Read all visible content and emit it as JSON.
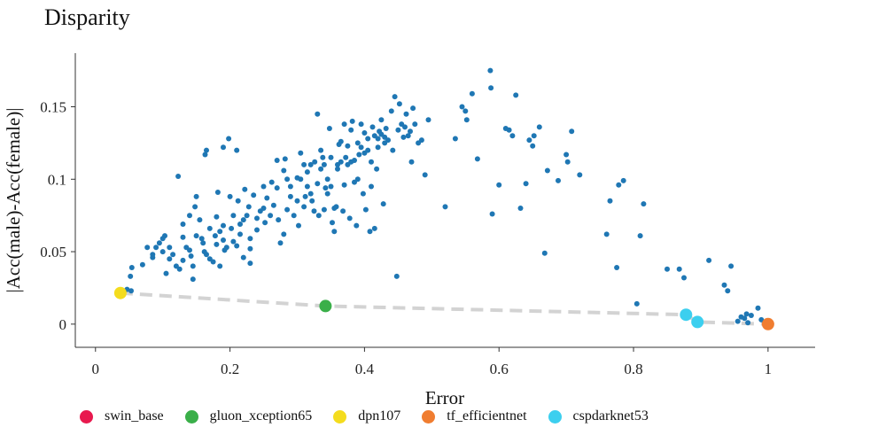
{
  "chart_data": {
    "type": "scatter",
    "title": "Disparity",
    "xlabel": "Error",
    "ylabel": "|Acc(male)-Acc(female)|",
    "xlim": [
      -0.03,
      1.07
    ],
    "ylim": [
      -0.016,
      0.187
    ],
    "x_ticks": [
      0,
      0.2,
      0.4,
      0.6,
      0.8,
      1
    ],
    "x_tick_labels": [
      "0",
      "0.2",
      "0.4",
      "0.6",
      "0.8",
      "1"
    ],
    "y_ticks": [
      0,
      0.05,
      0.1,
      0.15
    ],
    "y_tick_labels": [
      "0",
      "0.05",
      "0.1",
      "0.15"
    ],
    "grid": false,
    "legend_position": "bottom",
    "background_color": "#1f77b4",
    "highlight": [
      {
        "name": "swin_base",
        "color": "#e8194e",
        "x": null,
        "y": null
      },
      {
        "name": "gluon_xception65",
        "color": "#3aaf49",
        "x": 0.342,
        "y": 0.0125
      },
      {
        "name": "dpn107",
        "color": "#f4dc1e",
        "x": 0.037,
        "y": 0.0215
      },
      {
        "name": "tf_efficientnet",
        "color": "#f07d30",
        "x": 1.0,
        "y": 0.0
      },
      {
        "name": "cspdarknet53",
        "color": "#3ccfef",
        "x": 0.895,
        "y": 0.0015
      }
    ],
    "extra_highlight_points": [
      {
        "series": "cspdarknet53",
        "x": 0.878,
        "y": 0.0065
      }
    ],
    "frontier_line": [
      [
        0.037,
        0.0215
      ],
      [
        0.342,
        0.0125
      ],
      [
        0.878,
        0.0065
      ],
      [
        0.895,
        0.0015
      ],
      [
        1.0,
        0.0
      ]
    ],
    "points": [
      [
        0.047,
        0.024
      ],
      [
        0.053,
        0.023
      ],
      [
        0.052,
        0.033
      ],
      [
        0.054,
        0.039
      ],
      [
        0.07,
        0.041
      ],
      [
        0.077,
        0.053
      ],
      [
        0.085,
        0.048
      ],
      [
        0.085,
        0.046
      ],
      [
        0.09,
        0.053
      ],
      [
        0.095,
        0.056
      ],
      [
        0.1,
        0.059
      ],
      [
        0.103,
        0.061
      ],
      [
        0.1,
        0.05
      ],
      [
        0.105,
        0.035
      ],
      [
        0.11,
        0.045
      ],
      [
        0.11,
        0.053
      ],
      [
        0.115,
        0.048
      ],
      [
        0.12,
        0.04
      ],
      [
        0.123,
        0.102
      ],
      [
        0.125,
        0.038
      ],
      [
        0.13,
        0.06
      ],
      [
        0.13,
        0.044
      ],
      [
        0.13,
        0.069
      ],
      [
        0.135,
        0.053
      ],
      [
        0.14,
        0.051
      ],
      [
        0.14,
        0.075
      ],
      [
        0.142,
        0.047
      ],
      [
        0.145,
        0.031
      ],
      [
        0.145,
        0.04
      ],
      [
        0.148,
        0.081
      ],
      [
        0.15,
        0.088
      ],
      [
        0.15,
        0.061
      ],
      [
        0.155,
        0.072
      ],
      [
        0.158,
        0.059
      ],
      [
        0.16,
        0.056
      ],
      [
        0.162,
        0.05
      ],
      [
        0.165,
        0.048
      ],
      [
        0.163,
        0.117
      ],
      [
        0.165,
        0.12
      ],
      [
        0.17,
        0.045
      ],
      [
        0.17,
        0.066
      ],
      [
        0.175,
        0.043
      ],
      [
        0.178,
        0.061
      ],
      [
        0.18,
        0.074
      ],
      [
        0.18,
        0.055
      ],
      [
        0.182,
        0.091
      ],
      [
        0.185,
        0.04
      ],
      [
        0.185,
        0.064
      ],
      [
        0.19,
        0.058
      ],
      [
        0.19,
        0.068
      ],
      [
        0.19,
        0.122
      ],
      [
        0.192,
        0.051
      ],
      [
        0.195,
        0.053
      ],
      [
        0.198,
        0.128
      ],
      [
        0.2,
        0.088
      ],
      [
        0.202,
        0.066
      ],
      [
        0.205,
        0.075
      ],
      [
        0.205,
        0.057
      ],
      [
        0.21,
        0.054
      ],
      [
        0.21,
        0.12
      ],
      [
        0.212,
        0.085
      ],
      [
        0.215,
        0.069
      ],
      [
        0.215,
        0.062
      ],
      [
        0.22,
        0.072
      ],
      [
        0.22,
        0.046
      ],
      [
        0.222,
        0.093
      ],
      [
        0.225,
        0.075
      ],
      [
        0.228,
        0.081
      ],
      [
        0.23,
        0.052
      ],
      [
        0.23,
        0.059
      ],
      [
        0.23,
        0.042
      ],
      [
        0.235,
        0.089
      ],
      [
        0.24,
        0.073
      ],
      [
        0.24,
        0.065
      ],
      [
        0.245,
        0.078
      ],
      [
        0.25,
        0.08
      ],
      [
        0.25,
        0.095
      ],
      [
        0.252,
        0.07
      ],
      [
        0.255,
        0.087
      ],
      [
        0.26,
        0.075
      ],
      [
        0.262,
        0.098
      ],
      [
        0.265,
        0.082
      ],
      [
        0.27,
        0.094
      ],
      [
        0.27,
        0.113
      ],
      [
        0.272,
        0.072
      ],
      [
        0.275,
        0.056
      ],
      [
        0.28,
        0.062
      ],
      [
        0.28,
        0.106
      ],
      [
        0.282,
        0.114
      ],
      [
        0.285,
        0.079
      ],
      [
        0.285,
        0.1
      ],
      [
        0.29,
        0.088
      ],
      [
        0.29,
        0.095
      ],
      [
        0.295,
        0.075
      ],
      [
        0.3,
        0.085
      ],
      [
        0.3,
        0.101
      ],
      [
        0.302,
        0.068
      ],
      [
        0.305,
        0.118
      ],
      [
        0.305,
        0.1
      ],
      [
        0.31,
        0.081
      ],
      [
        0.31,
        0.11
      ],
      [
        0.312,
        0.088
      ],
      [
        0.315,
        0.095
      ],
      [
        0.315,
        0.105
      ],
      [
        0.32,
        0.09
      ],
      [
        0.32,
        0.11
      ],
      [
        0.322,
        0.085
      ],
      [
        0.325,
        0.078
      ],
      [
        0.326,
        0.112
      ],
      [
        0.33,
        0.145
      ],
      [
        0.33,
        0.097
      ],
      [
        0.332,
        0.075
      ],
      [
        0.335,
        0.107
      ],
      [
        0.335,
        0.12
      ],
      [
        0.338,
        0.115
      ],
      [
        0.34,
        0.11
      ],
      [
        0.34,
        0.079
      ],
      [
        0.342,
        0.094
      ],
      [
        0.345,
        0.09
      ],
      [
        0.345,
        0.1
      ],
      [
        0.348,
        0.135
      ],
      [
        0.35,
        0.115
      ],
      [
        0.35,
        0.095
      ],
      [
        0.352,
        0.07
      ],
      [
        0.355,
        0.08
      ],
      [
        0.355,
        0.064
      ],
      [
        0.358,
        0.081
      ],
      [
        0.36,
        0.107
      ],
      [
        0.36,
        0.11
      ],
      [
        0.362,
        0.124
      ],
      [
        0.365,
        0.112
      ],
      [
        0.365,
        0.126
      ],
      [
        0.368,
        0.078
      ],
      [
        0.37,
        0.096
      ],
      [
        0.37,
        0.138
      ],
      [
        0.372,
        0.115
      ],
      [
        0.375,
        0.123
      ],
      [
        0.375,
        0.11
      ],
      [
        0.378,
        0.073
      ],
      [
        0.38,
        0.134
      ],
      [
        0.38,
        0.112
      ],
      [
        0.382,
        0.14
      ],
      [
        0.385,
        0.113
      ],
      [
        0.385,
        0.098
      ],
      [
        0.388,
        0.068
      ],
      [
        0.39,
        0.125
      ],
      [
        0.39,
        0.1
      ],
      [
        0.392,
        0.117
      ],
      [
        0.395,
        0.122
      ],
      [
        0.395,
        0.138
      ],
      [
        0.398,
        0.09
      ],
      [
        0.4,
        0.118
      ],
      [
        0.4,
        0.132
      ],
      [
        0.402,
        0.079
      ],
      [
        0.405,
        0.128
      ],
      [
        0.405,
        0.12
      ],
      [
        0.408,
        0.064
      ],
      [
        0.41,
        0.112
      ],
      [
        0.41,
        0.095
      ],
      [
        0.412,
        0.136
      ],
      [
        0.415,
        0.13
      ],
      [
        0.415,
        0.066
      ],
      [
        0.418,
        0.107
      ],
      [
        0.42,
        0.128
      ],
      [
        0.42,
        0.122
      ],
      [
        0.422,
        0.133
      ],
      [
        0.425,
        0.131
      ],
      [
        0.425,
        0.141
      ],
      [
        0.428,
        0.083
      ],
      [
        0.43,
        0.129
      ],
      [
        0.43,
        0.125
      ],
      [
        0.432,
        0.135
      ],
      [
        0.435,
        0.127
      ],
      [
        0.44,
        0.147
      ],
      [
        0.442,
        0.12
      ],
      [
        0.445,
        0.157
      ],
      [
        0.448,
        0.033
      ],
      [
        0.45,
        0.134
      ],
      [
        0.452,
        0.152
      ],
      [
        0.455,
        0.138
      ],
      [
        0.458,
        0.129
      ],
      [
        0.46,
        0.136
      ],
      [
        0.462,
        0.145
      ],
      [
        0.465,
        0.13
      ],
      [
        0.468,
        0.133
      ],
      [
        0.47,
        0.112
      ],
      [
        0.472,
        0.149
      ],
      [
        0.475,
        0.138
      ],
      [
        0.48,
        0.125
      ],
      [
        0.485,
        0.127
      ],
      [
        0.49,
        0.103
      ],
      [
        0.495,
        0.141
      ],
      [
        0.52,
        0.081
      ],
      [
        0.535,
        0.128
      ],
      [
        0.545,
        0.15
      ],
      [
        0.55,
        0.147
      ],
      [
        0.552,
        0.141
      ],
      [
        0.56,
        0.159
      ],
      [
        0.568,
        0.114
      ],
      [
        0.587,
        0.175
      ],
      [
        0.588,
        0.163
      ],
      [
        0.59,
        0.076
      ],
      [
        0.6,
        0.096
      ],
      [
        0.61,
        0.135
      ],
      [
        0.615,
        0.134
      ],
      [
        0.62,
        0.13
      ],
      [
        0.625,
        0.158
      ],
      [
        0.632,
        0.08
      ],
      [
        0.64,
        0.097
      ],
      [
        0.645,
        0.127
      ],
      [
        0.65,
        0.123
      ],
      [
        0.652,
        0.13
      ],
      [
        0.66,
        0.136
      ],
      [
        0.668,
        0.049
      ],
      [
        0.672,
        0.106
      ],
      [
        0.688,
        0.099
      ],
      [
        0.7,
        0.117
      ],
      [
        0.702,
        0.112
      ],
      [
        0.708,
        0.133
      ],
      [
        0.72,
        0.103
      ],
      [
        0.76,
        0.062
      ],
      [
        0.765,
        0.085
      ],
      [
        0.775,
        0.039
      ],
      [
        0.778,
        0.096
      ],
      [
        0.785,
        0.099
      ],
      [
        0.805,
        0.014
      ],
      [
        0.81,
        0.061
      ],
      [
        0.815,
        0.083
      ],
      [
        0.85,
        0.038
      ],
      [
        0.868,
        0.038
      ],
      [
        0.875,
        0.032
      ],
      [
        0.912,
        0.044
      ],
      [
        0.935,
        0.027
      ],
      [
        0.94,
        0.023
      ],
      [
        0.945,
        0.04
      ],
      [
        0.955,
        0.002
      ],
      [
        0.96,
        0.005
      ],
      [
        0.965,
        0.004
      ],
      [
        0.968,
        0.007
      ],
      [
        0.97,
        0.001
      ],
      [
        0.975,
        0.006
      ],
      [
        0.985,
        0.011
      ],
      [
        0.99,
        0.003
      ],
      [
        0.995,
        0.001
      ]
    ]
  }
}
